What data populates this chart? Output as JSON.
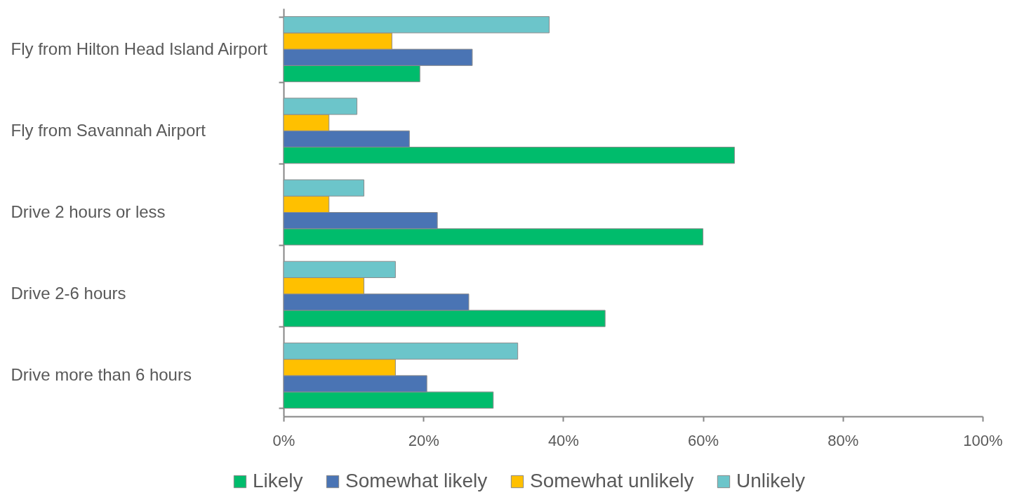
{
  "chart_data": {
    "type": "bar",
    "orientation": "horizontal",
    "categories": [
      "Fly from Hilton Head Island Airport",
      "Fly from Savannah Airport",
      "Drive 2 hours or less",
      "Drive 2-6 hours",
      "Drive more than 6 hours"
    ],
    "series": [
      {
        "name": "Likely",
        "color": "#00bc6c",
        "values": [
          19.5,
          64.5,
          60,
          46,
          30
        ]
      },
      {
        "name": "Somewhat likely",
        "color": "#4a74b4",
        "values": [
          27,
          18,
          22,
          26.5,
          20.5
        ]
      },
      {
        "name": "Somewhat unlikely",
        "color": "#ffc000",
        "values": [
          15.5,
          6.5,
          6.5,
          11.5,
          16
        ]
      },
      {
        "name": "Unlikely",
        "color": "#6cc5ca",
        "values": [
          38,
          10.5,
          11.5,
          16,
          33.5
        ]
      }
    ],
    "xlim": [
      0,
      100
    ],
    "xticks": [
      {
        "value": 0,
        "label": "0%"
      },
      {
        "value": 20,
        "label": "20%"
      },
      {
        "value": 40,
        "label": "40%"
      },
      {
        "value": 60,
        "label": "60%"
      },
      {
        "value": 80,
        "label": "80%"
      },
      {
        "value": 100,
        "label": "100%"
      }
    ],
    "legend": "bottom",
    "grid": false
  }
}
